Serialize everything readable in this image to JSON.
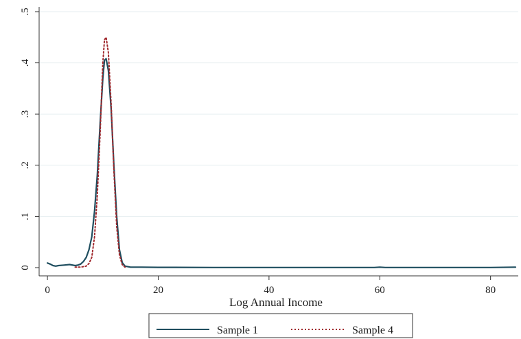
{
  "chart_data": {
    "type": "line",
    "title": "",
    "xlabel": "Log Annual Income",
    "ylabel": "",
    "xlim": [
      -1.5,
      85
    ],
    "ylim": [
      0,
      0.5
    ],
    "xticks": [
      0,
      20,
      40,
      60,
      80
    ],
    "yticks": [
      0,
      0.1,
      0.2,
      0.3,
      0.4,
      0.5
    ],
    "xtick_labels": [
      "0",
      "20",
      "40",
      "60",
      "80"
    ],
    "ytick_labels": [
      "0",
      ".1",
      ".2",
      ".3",
      ".4",
      ".5"
    ],
    "grid": "horizontal",
    "legend_position": "bottom",
    "series": [
      {
        "name": "Sample 1",
        "color": "#1f4e5f",
        "style": "solid",
        "x": [
          0,
          0.5,
          1,
          1.5,
          2,
          3,
          4,
          5,
          5.5,
          6,
          6.5,
          7,
          7.5,
          8,
          8.5,
          9,
          9.5,
          10,
          10.3,
          10.6,
          11,
          11.5,
          12,
          12.5,
          13,
          13.5,
          14,
          15,
          17,
          20,
          30,
          40,
          50,
          59,
          60,
          61,
          70,
          80,
          84.5
        ],
        "y": [
          0.009,
          0.007,
          0.004,
          0.003,
          0.004,
          0.005,
          0.006,
          0.004,
          0.005,
          0.007,
          0.012,
          0.02,
          0.035,
          0.06,
          0.11,
          0.18,
          0.28,
          0.37,
          0.405,
          0.408,
          0.385,
          0.31,
          0.2,
          0.1,
          0.035,
          0.01,
          0.003,
          0.001,
          0.001,
          0.0005,
          0.0003,
          0.0003,
          0.0003,
          0.0003,
          0.001,
          0.0003,
          0.0003,
          0.0003,
          0.001
        ]
      },
      {
        "name": "Sample 4",
        "color": "#a0282d",
        "style": "dotted",
        "x": [
          5,
          6,
          7,
          7.5,
          8,
          8.5,
          9,
          9.5,
          10,
          10.3,
          10.6,
          11,
          11.5,
          12,
          12.5,
          13,
          13.5,
          14
        ],
        "y": [
          0.001,
          0.001,
          0.003,
          0.008,
          0.02,
          0.06,
          0.14,
          0.26,
          0.4,
          0.445,
          0.45,
          0.42,
          0.32,
          0.19,
          0.08,
          0.025,
          0.006,
          0.001
        ]
      }
    ]
  }
}
